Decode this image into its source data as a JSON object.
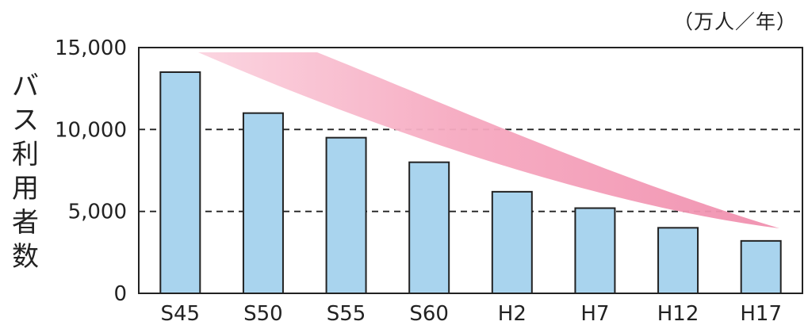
{
  "chart_data": {
    "type": "bar",
    "categories": [
      "S45",
      "S50",
      "S55",
      "S60",
      "H2",
      "H7",
      "H12",
      "H17"
    ],
    "values": [
      13500,
      11000,
      9500,
      8000,
      6200,
      5200,
      4000,
      3200
    ],
    "ylabel": "バス利用者数",
    "unit_label": "（万人／年）",
    "ylim": [
      0,
      15000
    ],
    "yticks": [
      "0",
      "5,000",
      "10,000",
      "15,000"
    ],
    "ytick_values": [
      0,
      5000,
      10000,
      15000
    ],
    "grid": "dashed horizontal at 5,000 and 10,000",
    "trend_band": "pink decreasing band (annotation)",
    "colors": {
      "bar_fill": "#a9d4ee",
      "bar_stroke": "#222222",
      "trend": "#f28cab"
    }
  }
}
